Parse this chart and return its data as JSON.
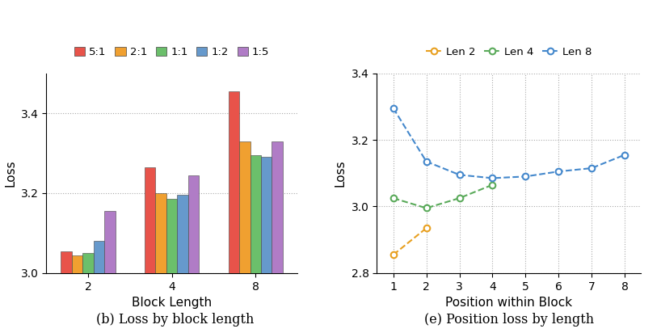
{
  "bar_categories": [
    2,
    4,
    8
  ],
  "bar_ratios": [
    "5:1",
    "2:1",
    "1:1",
    "1:2",
    "1:5"
  ],
  "bar_colors": [
    "#e8534a",
    "#f0a030",
    "#6bbf6b",
    "#6699cc",
    "#b07cc6"
  ],
  "bar_values": {
    "5:1": [
      3.055,
      3.265,
      3.455
    ],
    "2:1": [
      3.045,
      3.2,
      3.33
    ],
    "1:1": [
      3.05,
      3.185,
      3.295
    ],
    "1:2": [
      3.08,
      3.195,
      3.29
    ],
    "1:5": [
      3.155,
      3.245,
      3.33
    ]
  },
  "bar_ylim": [
    3.0,
    3.5
  ],
  "bar_yticks": [
    3.0,
    3.2,
    3.4
  ],
  "bar_xlabel": "Block Length",
  "bar_ylabel": "Loss",
  "bar_caption": "(b) Loss by block length",
  "line_series": [
    {
      "label": "Len 2",
      "x": [
        1,
        2
      ],
      "y": [
        2.855,
        2.935
      ],
      "color": "#e8a020"
    },
    {
      "label": "Len 4",
      "x": [
        1,
        2,
        3,
        4
      ],
      "y": [
        3.025,
        2.995,
        3.025,
        3.065
      ],
      "color": "#5aaa5a"
    },
    {
      "label": "Len 8",
      "x": [
        1,
        2,
        3,
        4,
        5,
        6,
        7,
        8
      ],
      "y": [
        3.295,
        3.135,
        3.095,
        3.085,
        3.09,
        3.105,
        3.115,
        3.155
      ],
      "color": "#4488cc"
    }
  ],
  "line_ylim": [
    2.8,
    3.4
  ],
  "line_yticks": [
    2.8,
    3.0,
    3.2,
    3.4
  ],
  "line_xticks": [
    1,
    2,
    3,
    4,
    5,
    6,
    7,
    8
  ],
  "line_xlabel": "Position within Block",
  "line_ylabel": "Loss",
  "line_caption": "(e) Position loss by length"
}
